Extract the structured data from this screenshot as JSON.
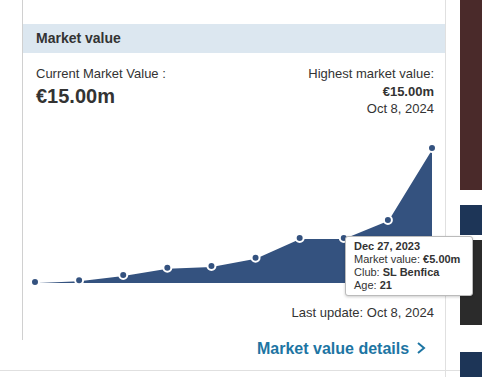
{
  "header": {
    "title": "Market value"
  },
  "current": {
    "label": "Current Market Value :",
    "value": "€15.00m"
  },
  "highest": {
    "label": "Highest market value:",
    "value": "€15.00m",
    "date": "Oct 8, 2024"
  },
  "chart_data": {
    "type": "area",
    "categories": [
      null,
      null,
      null,
      null,
      null,
      null,
      null,
      null,
      null,
      null
    ],
    "values": [
      0.1,
      0.3,
      0.9,
      1.7,
      1.9,
      2.8,
      5.0,
      5.0,
      7.0,
      15.0
    ],
    "color": "#34527f",
    "ylim": [
      0,
      15
    ],
    "tick_labels": false,
    "marker": "circle"
  },
  "tooltip": {
    "title": "Dec 27, 2023",
    "rows": [
      {
        "label": "Market value:",
        "value": "€5.00m"
      },
      {
        "label": "Club:",
        "value": "SL Benfica"
      },
      {
        "label": "Age:",
        "value": "21"
      }
    ]
  },
  "last_update": "Last update: Oct 8, 2024",
  "link": "Market value details"
}
